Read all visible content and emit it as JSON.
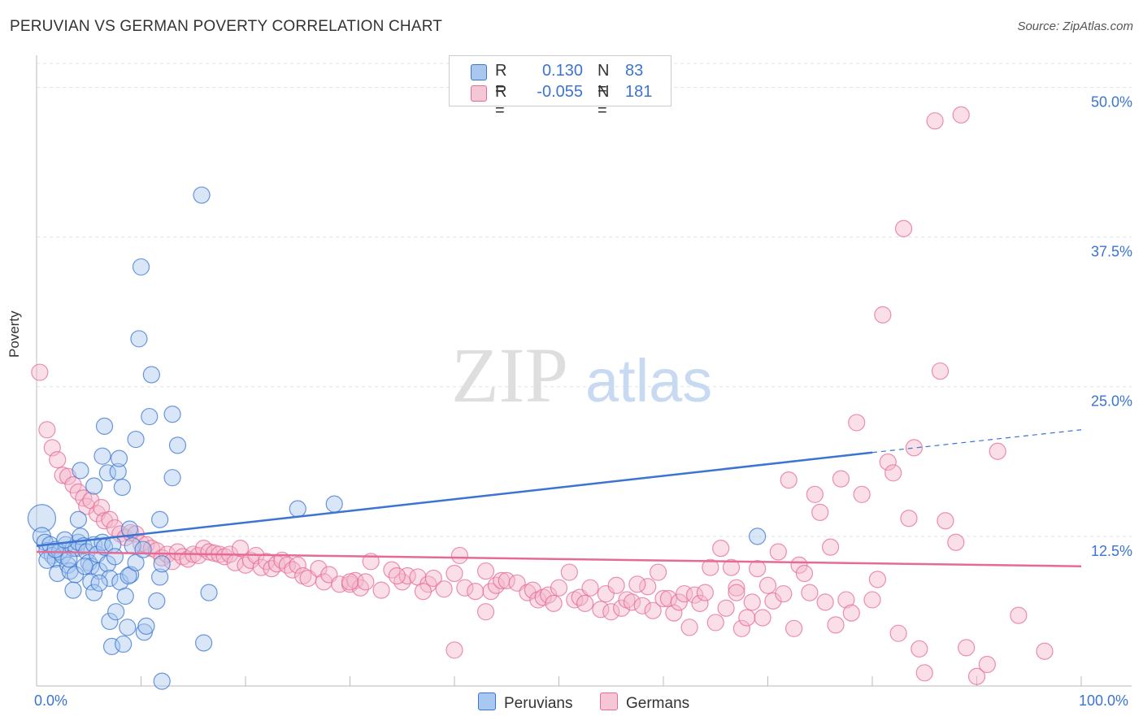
{
  "title": "PERUVIAN VS GERMAN POVERTY CORRELATION CHART",
  "source": "Source: ZipAtlas.com",
  "watermark": {
    "zip": "ZIP",
    "atlas": "atlas"
  },
  "legend": {
    "rows": [
      {
        "r_label": "R =",
        "r_value": "0.130",
        "n_label": "N =",
        "n_value": "83",
        "color": "#a8c8f0"
      },
      {
        "r_label": "R =",
        "r_value": "-0.055",
        "n_label": "N =",
        "n_value": "181",
        "color": "#f5b8cb"
      }
    ]
  },
  "bottom_legend": [
    {
      "label": "Peruvians",
      "color": "#a8c8f0"
    },
    {
      "label": "Germans",
      "color": "#f5b8cb"
    }
  ],
  "chart_data": {
    "type": "scatter",
    "title": "PERUVIAN VS GERMAN POVERTY CORRELATION CHART",
    "xlabel": "",
    "ylabel": "Poverty",
    "xlim": [
      0,
      100
    ],
    "ylim": [
      0,
      52
    ],
    "x_tick_labels": [
      "0.0%",
      "100.0%"
    ],
    "y_ticks": [
      12.5,
      25.0,
      37.5,
      50.0
    ],
    "y_tick_labels": [
      "12.5%",
      "25.0%",
      "37.5%",
      "50.0%"
    ],
    "grid": true,
    "legend_position": "top-center",
    "series": [
      {
        "name": "Peruvians",
        "color": "#3b74d1",
        "fill": "#a8c8f0",
        "trend": {
          "x": [
            0,
            80,
            100
          ],
          "y": [
            11.7,
            19.5,
            21.4
          ],
          "solid_until": 80
        },
        "points": [
          [
            0.5,
            14
          ],
          [
            0.5,
            12.5
          ],
          [
            0.8,
            12.0
          ],
          [
            1.0,
            11.3
          ],
          [
            1.3,
            11.8
          ],
          [
            1.5,
            10.9
          ],
          [
            1.8,
            10.6
          ],
          [
            1.0,
            10.5
          ],
          [
            2.0,
            9.4
          ],
          [
            2.2,
            11.2
          ],
          [
            2.5,
            10.9
          ],
          [
            2.8,
            11.8
          ],
          [
            3.0,
            10.1
          ],
          [
            3.2,
            9.6
          ],
          [
            3.5,
            11.5
          ],
          [
            3.8,
            11.5
          ],
          [
            4.0,
            12.0
          ],
          [
            4.2,
            12.5
          ],
          [
            3.7,
            9.3
          ],
          [
            4.5,
            11.7
          ],
          [
            4.8,
            11.2
          ],
          [
            5.0,
            10.3
          ],
          [
            5.2,
            10.0
          ],
          [
            5.5,
            11.8
          ],
          [
            5.8,
            11.0
          ],
          [
            6.0,
            9.6
          ],
          [
            6.3,
            12.0
          ],
          [
            6.5,
            11.6
          ],
          [
            6.8,
            10.2
          ],
          [
            7.0,
            9.0
          ],
          [
            7.3,
            11.8
          ],
          [
            7.5,
            10.8
          ],
          [
            3.5,
            8.0
          ],
          [
            5.2,
            8.7
          ],
          [
            5.5,
            7.8
          ],
          [
            4.0,
            13.9
          ],
          [
            4.2,
            18.0
          ],
          [
            5.5,
            16.7
          ],
          [
            6.3,
            19.2
          ],
          [
            6.5,
            21.7
          ],
          [
            6.8,
            17.8
          ],
          [
            7.8,
            17.9
          ],
          [
            7.9,
            19.0
          ],
          [
            8.2,
            16.6
          ],
          [
            7.0,
            5.4
          ],
          [
            7.2,
            3.3
          ],
          [
            7.6,
            6.2
          ],
          [
            8.0,
            8.7
          ],
          [
            8.3,
            3.5
          ],
          [
            8.5,
            7.5
          ],
          [
            8.7,
            4.9
          ],
          [
            8.9,
            13.1
          ],
          [
            9.0,
            9.3
          ],
          [
            8.8,
            9.2
          ],
          [
            9.2,
            11.7
          ],
          [
            9.5,
            10.3
          ],
          [
            9.5,
            20.6
          ],
          [
            9.8,
            29.0
          ],
          [
            10.0,
            35.0
          ],
          [
            10.2,
            11.4
          ],
          [
            10.3,
            4.5
          ],
          [
            10.5,
            5.0
          ],
          [
            10.8,
            22.5
          ],
          [
            11.0,
            26.0
          ],
          [
            11.5,
            7.1
          ],
          [
            11.8,
            13.9
          ],
          [
            11.8,
            9.1
          ],
          [
            12.0,
            10.2
          ],
          [
            12.0,
            0.4
          ],
          [
            13.0,
            17.4
          ],
          [
            13.0,
            22.7
          ],
          [
            13.5,
            20.1
          ],
          [
            15.8,
            41.0
          ],
          [
            16.0,
            3.6
          ],
          [
            16.5,
            7.8
          ],
          [
            25.0,
            14.8
          ],
          [
            28.5,
            15.2
          ],
          [
            69.0,
            12.5
          ],
          [
            1.8,
            11.4
          ],
          [
            2.7,
            12.2
          ],
          [
            4.6,
            10.0
          ],
          [
            6.0,
            8.6
          ],
          [
            3.1,
            10.6
          ]
        ],
        "point_sizes": {
          "0": 34,
          "1": 22
        }
      },
      {
        "name": "Germans",
        "color": "#e56b96",
        "fill": "#f5b8cb",
        "trend": {
          "x": [
            0,
            100
          ],
          "y": [
            11.2,
            10.0
          ],
          "solid_until": 100
        },
        "points": [
          [
            0.3,
            26.2
          ],
          [
            1.0,
            21.4
          ],
          [
            1.5,
            19.9
          ],
          [
            2.0,
            18.9
          ],
          [
            2.5,
            17.6
          ],
          [
            3.0,
            17.5
          ],
          [
            3.5,
            16.8
          ],
          [
            4.0,
            16.2
          ],
          [
            4.5,
            15.7
          ],
          [
            4.8,
            15.0
          ],
          [
            5.2,
            15.5
          ],
          [
            5.8,
            14.4
          ],
          [
            6.2,
            14.9
          ],
          [
            6.5,
            13.8
          ],
          [
            7.0,
            13.9
          ],
          [
            7.5,
            13.2
          ],
          [
            8.0,
            12.7
          ],
          [
            8.5,
            12.4
          ],
          [
            9.0,
            12.8
          ],
          [
            9.5,
            12.7
          ],
          [
            10.0,
            11.9
          ],
          [
            10.5,
            11.8
          ],
          [
            11.0,
            11.5
          ],
          [
            11.5,
            11.3
          ],
          [
            12.0,
            10.7
          ],
          [
            12.5,
            11.0
          ],
          [
            13.0,
            10.4
          ],
          [
            13.5,
            11.2
          ],
          [
            14.0,
            10.8
          ],
          [
            14.5,
            10.6
          ],
          [
            15.0,
            11.0
          ],
          [
            15.5,
            10.9
          ],
          [
            16.0,
            11.5
          ],
          [
            16.5,
            11.2
          ],
          [
            17.0,
            11.1
          ],
          [
            17.5,
            11.0
          ],
          [
            18.0,
            10.8
          ],
          [
            18.5,
            11.0
          ],
          [
            19.0,
            10.3
          ],
          [
            19.5,
            11.5
          ],
          [
            20.0,
            10.1
          ],
          [
            20.5,
            10.5
          ],
          [
            21.0,
            10.9
          ],
          [
            21.5,
            9.9
          ],
          [
            22.0,
            10.4
          ],
          [
            22.5,
            9.8
          ],
          [
            23.0,
            10.2
          ],
          [
            23.5,
            10.5
          ],
          [
            24.0,
            10.1
          ],
          [
            24.5,
            9.7
          ],
          [
            25.0,
            10.1
          ],
          [
            25.5,
            9.2
          ],
          [
            26.0,
            9.0
          ],
          [
            27.0,
            9.8
          ],
          [
            27.5,
            8.7
          ],
          [
            28.0,
            9.3
          ],
          [
            29.0,
            8.5
          ],
          [
            30.0,
            8.5
          ],
          [
            30.5,
            8.8
          ],
          [
            31.0,
            8.2
          ],
          [
            31.5,
            8.7
          ],
          [
            32.0,
            10.4
          ],
          [
            33.0,
            8.0
          ],
          [
            34.0,
            9.7
          ],
          [
            35.0,
            8.7
          ],
          [
            35.5,
            9.2
          ],
          [
            36.5,
            9.1
          ],
          [
            37.5,
            8.5
          ],
          [
            38.0,
            9.0
          ],
          [
            39.0,
            8.1
          ],
          [
            40.5,
            10.9
          ],
          [
            40.0,
            9.4
          ],
          [
            41.0,
            8.2
          ],
          [
            42.0,
            7.9
          ],
          [
            43.0,
            9.6
          ],
          [
            43.5,
            7.9
          ],
          [
            44.0,
            8.4
          ],
          [
            44.5,
            8.8
          ],
          [
            45.0,
            8.8
          ],
          [
            46.0,
            8.6
          ],
          [
            47.0,
            7.8
          ],
          [
            47.5,
            8.0
          ],
          [
            48.0,
            7.2
          ],
          [
            48.5,
            7.4
          ],
          [
            49.0,
            7.6
          ],
          [
            49.5,
            6.9
          ],
          [
            50.0,
            8.2
          ],
          [
            51.0,
            9.5
          ],
          [
            51.5,
            7.2
          ],
          [
            52.0,
            7.4
          ],
          [
            52.5,
            6.9
          ],
          [
            53.0,
            8.2
          ],
          [
            54.0,
            6.4
          ],
          [
            54.5,
            7.7
          ],
          [
            55.0,
            6.2
          ],
          [
            55.5,
            8.4
          ],
          [
            56.0,
            6.5
          ],
          [
            56.5,
            7.2
          ],
          [
            57.0,
            7.0
          ],
          [
            58.0,
            6.7
          ],
          [
            58.5,
            8.3
          ],
          [
            59.0,
            6.3
          ],
          [
            59.5,
            9.5
          ],
          [
            60.0,
            7.3
          ],
          [
            60.5,
            7.3
          ],
          [
            61.0,
            6.1
          ],
          [
            61.5,
            7.0
          ],
          [
            62.0,
            7.7
          ],
          [
            62.5,
            4.9
          ],
          [
            63.0,
            7.6
          ],
          [
            63.5,
            6.9
          ],
          [
            64.0,
            7.8
          ],
          [
            64.5,
            9.9
          ],
          [
            65.0,
            5.3
          ],
          [
            65.5,
            11.5
          ],
          [
            66.0,
            6.5
          ],
          [
            66.5,
            9.9
          ],
          [
            67.0,
            8.2
          ],
          [
            67.5,
            4.8
          ],
          [
            68.0,
            5.7
          ],
          [
            68.5,
            7.0
          ],
          [
            69.0,
            9.8
          ],
          [
            69.5,
            5.7
          ],
          [
            70.0,
            8.4
          ],
          [
            70.5,
            7.1
          ],
          [
            71.0,
            11.2
          ],
          [
            71.5,
            7.7
          ],
          [
            72.0,
            17.2
          ],
          [
            72.5,
            4.8
          ],
          [
            73.0,
            10.1
          ],
          [
            73.5,
            9.4
          ],
          [
            74.0,
            7.8
          ],
          [
            74.5,
            16.0
          ],
          [
            75.0,
            14.5
          ],
          [
            75.5,
            7.0
          ],
          [
            76.0,
            11.6
          ],
          [
            76.5,
            5.1
          ],
          [
            77.0,
            17.3
          ],
          [
            77.5,
            7.2
          ],
          [
            78.0,
            6.1
          ],
          [
            78.5,
            22.0
          ],
          [
            79.0,
            16.0
          ],
          [
            80.0,
            7.2
          ],
          [
            80.5,
            8.9
          ],
          [
            81.0,
            31.0
          ],
          [
            81.5,
            18.7
          ],
          [
            82.0,
            17.8
          ],
          [
            82.5,
            4.4
          ],
          [
            83.0,
            38.2
          ],
          [
            83.5,
            14.0
          ],
          [
            84.0,
            19.9
          ],
          [
            84.5,
            3.1
          ],
          [
            85.0,
            1.1
          ],
          [
            86.0,
            47.2
          ],
          [
            86.5,
            26.3
          ],
          [
            87.0,
            13.8
          ],
          [
            88.0,
            12.0
          ],
          [
            88.5,
            47.7
          ],
          [
            89.0,
            3.2
          ],
          [
            90.0,
            0.8
          ],
          [
            91.0,
            1.8
          ],
          [
            92.0,
            19.6
          ],
          [
            94.0,
            5.9
          ],
          [
            96.5,
            2.9
          ],
          [
            40.0,
            3.0
          ],
          [
            43.0,
            6.2
          ],
          [
            37.0,
            7.9
          ],
          [
            30.0,
            8.7
          ],
          [
            34.5,
            9.2
          ],
          [
            57.5,
            8.5
          ],
          [
            67.0,
            7.8
          ]
        ]
      }
    ]
  }
}
